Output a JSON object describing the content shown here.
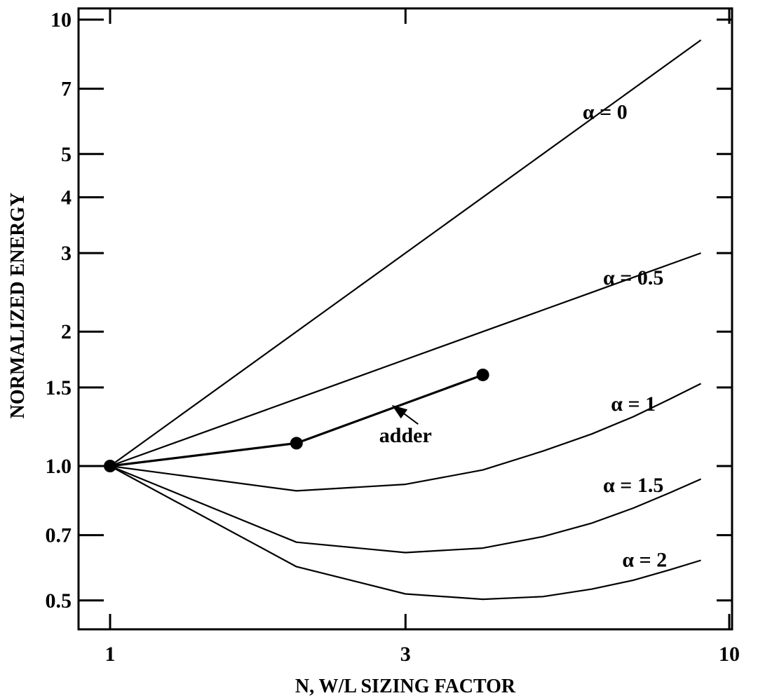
{
  "chart_data": {
    "type": "line",
    "title": "",
    "xlabel": "N, W/L SIZING FACTOR",
    "ylabel": "NORMALIZED ENERGY",
    "x_scale": "log",
    "y_scale": "log",
    "xlim": [
      0.9,
      10
    ],
    "ylim": [
      0.45,
      10.5
    ],
    "x_ticks": [
      {
        "value": 1,
        "label": "1"
      },
      {
        "value": 3,
        "label": "3"
      },
      {
        "value": 10,
        "label": "10"
      }
    ],
    "y_ticks": [
      {
        "value": 0.5,
        "label": "0.5"
      },
      {
        "value": 0.7,
        "label": "0.7"
      },
      {
        "value": 1.0,
        "label": "1.0"
      },
      {
        "value": 1.5,
        "label": "1.5"
      },
      {
        "value": 2,
        "label": "2"
      },
      {
        "value": 3,
        "label": "3"
      },
      {
        "value": 4,
        "label": "4"
      },
      {
        "value": 5,
        "label": "5"
      },
      {
        "value": 7,
        "label": "7"
      },
      {
        "value": 10,
        "label": "10"
      }
    ],
    "grid": false,
    "series": [
      {
        "name": "α = 0",
        "points": [
          [
            1,
            1.0
          ],
          [
            9,
            9.0
          ]
        ]
      },
      {
        "name": "α = 0.5",
        "points": [
          [
            1,
            1.0
          ],
          [
            2,
            1.414
          ],
          [
            3,
            1.732
          ],
          [
            4,
            2.0
          ],
          [
            5,
            2.236
          ],
          [
            6,
            2.449
          ],
          [
            7,
            2.646
          ],
          [
            8,
            2.828
          ],
          [
            9,
            3.0
          ]
        ]
      },
      {
        "name": "α = 1",
        "points": [
          [
            1,
            1.0
          ],
          [
            2,
            0.88
          ],
          [
            3,
            0.91
          ],
          [
            4,
            0.98
          ],
          [
            5,
            1.08
          ],
          [
            6,
            1.18
          ],
          [
            7,
            1.29
          ],
          [
            8,
            1.41
          ],
          [
            9,
            1.53
          ]
        ]
      },
      {
        "name": "α = 1.5",
        "points": [
          [
            1,
            1.0
          ],
          [
            2,
            0.675
          ],
          [
            3,
            0.64
          ],
          [
            4,
            0.655
          ],
          [
            5,
            0.695
          ],
          [
            6,
            0.745
          ],
          [
            7,
            0.805
          ],
          [
            8,
            0.87
          ],
          [
            9,
            0.935
          ]
        ]
      },
      {
        "name": "α = 2",
        "points": [
          [
            1,
            1.0
          ],
          [
            2,
            0.595
          ],
          [
            3,
            0.517
          ],
          [
            4,
            0.503
          ],
          [
            5,
            0.51
          ],
          [
            6,
            0.53
          ],
          [
            7,
            0.555
          ],
          [
            8,
            0.585
          ],
          [
            9,
            0.615
          ]
        ]
      }
    ],
    "adder": {
      "label": "adder",
      "points": [
        [
          1,
          1.0
        ],
        [
          2,
          1.125
        ],
        [
          4,
          1.6
        ]
      ]
    },
    "series_label_positions": [
      {
        "series": "α = 0",
        "x": 6.3,
        "y": 6.0
      },
      {
        "series": "α = 0.5",
        "x": 7.0,
        "y": 2.55
      },
      {
        "series": "α = 1",
        "x": 7.0,
        "y": 1.33
      },
      {
        "series": "α = 1.5",
        "x": 7.0,
        "y": 0.875
      },
      {
        "series": "α = 2",
        "x": 7.3,
        "y": 0.595
      }
    ],
    "annotation_position": {
      "x": 3.0,
      "y": 1.13
    },
    "arrow_target": {
      "x": 2.85,
      "y": 1.37
    }
  }
}
